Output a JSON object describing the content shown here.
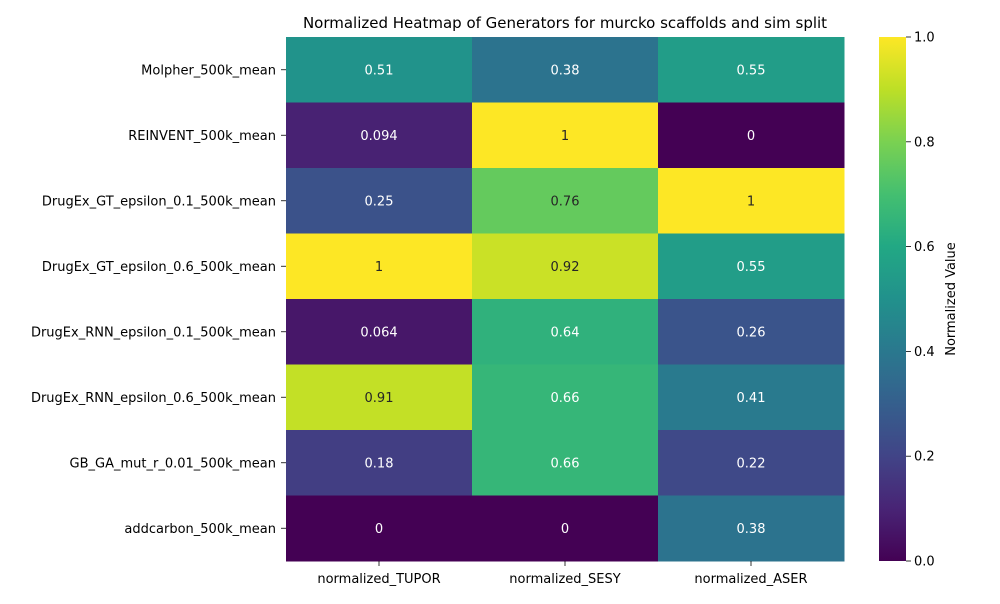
{
  "chart_data": {
    "type": "heatmap",
    "title": "Normalized Heatmap of Generators for murcko scaffolds and sim split",
    "rows": [
      "Molpher_500k_mean",
      "REINVENT_500k_mean",
      "DrugEx_GT_epsilon_0.1_500k_mean",
      "DrugEx_GT_epsilon_0.6_500k_mean",
      "DrugEx_RNN_epsilon_0.1_500k_mean",
      "DrugEx_RNN_epsilon_0.6_500k_mean",
      "GB_GA_mut_r_0.01_500k_mean",
      "addcarbon_500k_mean"
    ],
    "columns": [
      "normalized_TUPOR",
      "normalized_SESY",
      "normalized_ASER"
    ],
    "values": [
      [
        0.51,
        0.38,
        0.55
      ],
      [
        0.094,
        1,
        0
      ],
      [
        0.25,
        0.76,
        1
      ],
      [
        1,
        0.92,
        0.55
      ],
      [
        0.064,
        0.64,
        0.26
      ],
      [
        0.91,
        0.66,
        0.41
      ],
      [
        0.18,
        0.66,
        0.22
      ],
      [
        0,
        0,
        0.38
      ]
    ],
    "annotations": [
      [
        "0.51",
        "0.38",
        "0.55"
      ],
      [
        "0.094",
        "1",
        "0"
      ],
      [
        "0.25",
        "0.76",
        "1"
      ],
      [
        "1",
        "0.92",
        "0.55"
      ],
      [
        "0.064",
        "0.64",
        "0.26"
      ],
      [
        "0.91",
        "0.66",
        "0.41"
      ],
      [
        "0.18",
        "0.66",
        "0.22"
      ],
      [
        "0",
        "0",
        "0.38"
      ]
    ],
    "colormap": "viridis",
    "vmin": 0,
    "vmax": 1,
    "colorbar": {
      "label": "Normalized Value",
      "ticks": [
        "0.0",
        "0.2",
        "0.4",
        "0.6",
        "0.8",
        "1.0"
      ]
    }
  }
}
